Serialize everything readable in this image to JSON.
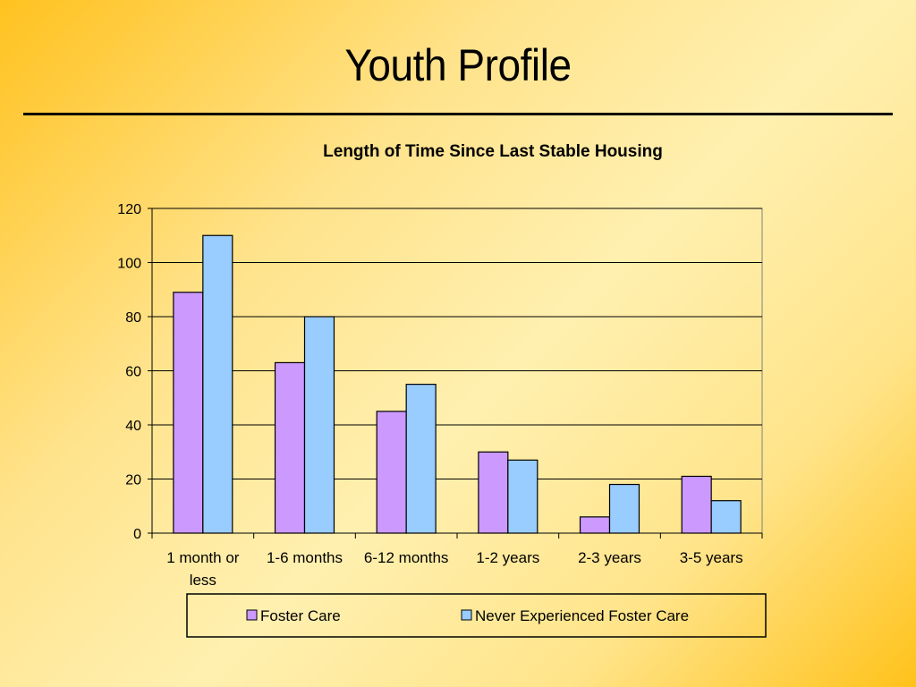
{
  "slide": {
    "title": "Youth Profile"
  },
  "colors": {
    "foster": "#cc99ff",
    "never": "#99ccff"
  },
  "chart_data": {
    "type": "bar",
    "title": "Length of Time Since Last Stable Housing",
    "categories": [
      [
        "1 month or",
        "less"
      ],
      [
        "1-6 months"
      ],
      [
        "6-12 months"
      ],
      [
        "1-2 years"
      ],
      [
        "2-3 years"
      ],
      [
        "3-5 years"
      ]
    ],
    "series": [
      {
        "name": "Foster Care",
        "values": [
          89,
          63,
          45,
          30,
          6,
          21
        ]
      },
      {
        "name": "Never Experienced Foster Care",
        "values": [
          110,
          80,
          55,
          27,
          18,
          12
        ]
      }
    ],
    "ylim": [
      0,
      120
    ],
    "yticks": [
      0,
      20,
      40,
      60,
      80,
      100,
      120
    ],
    "grid": true,
    "legend": "bottom"
  }
}
